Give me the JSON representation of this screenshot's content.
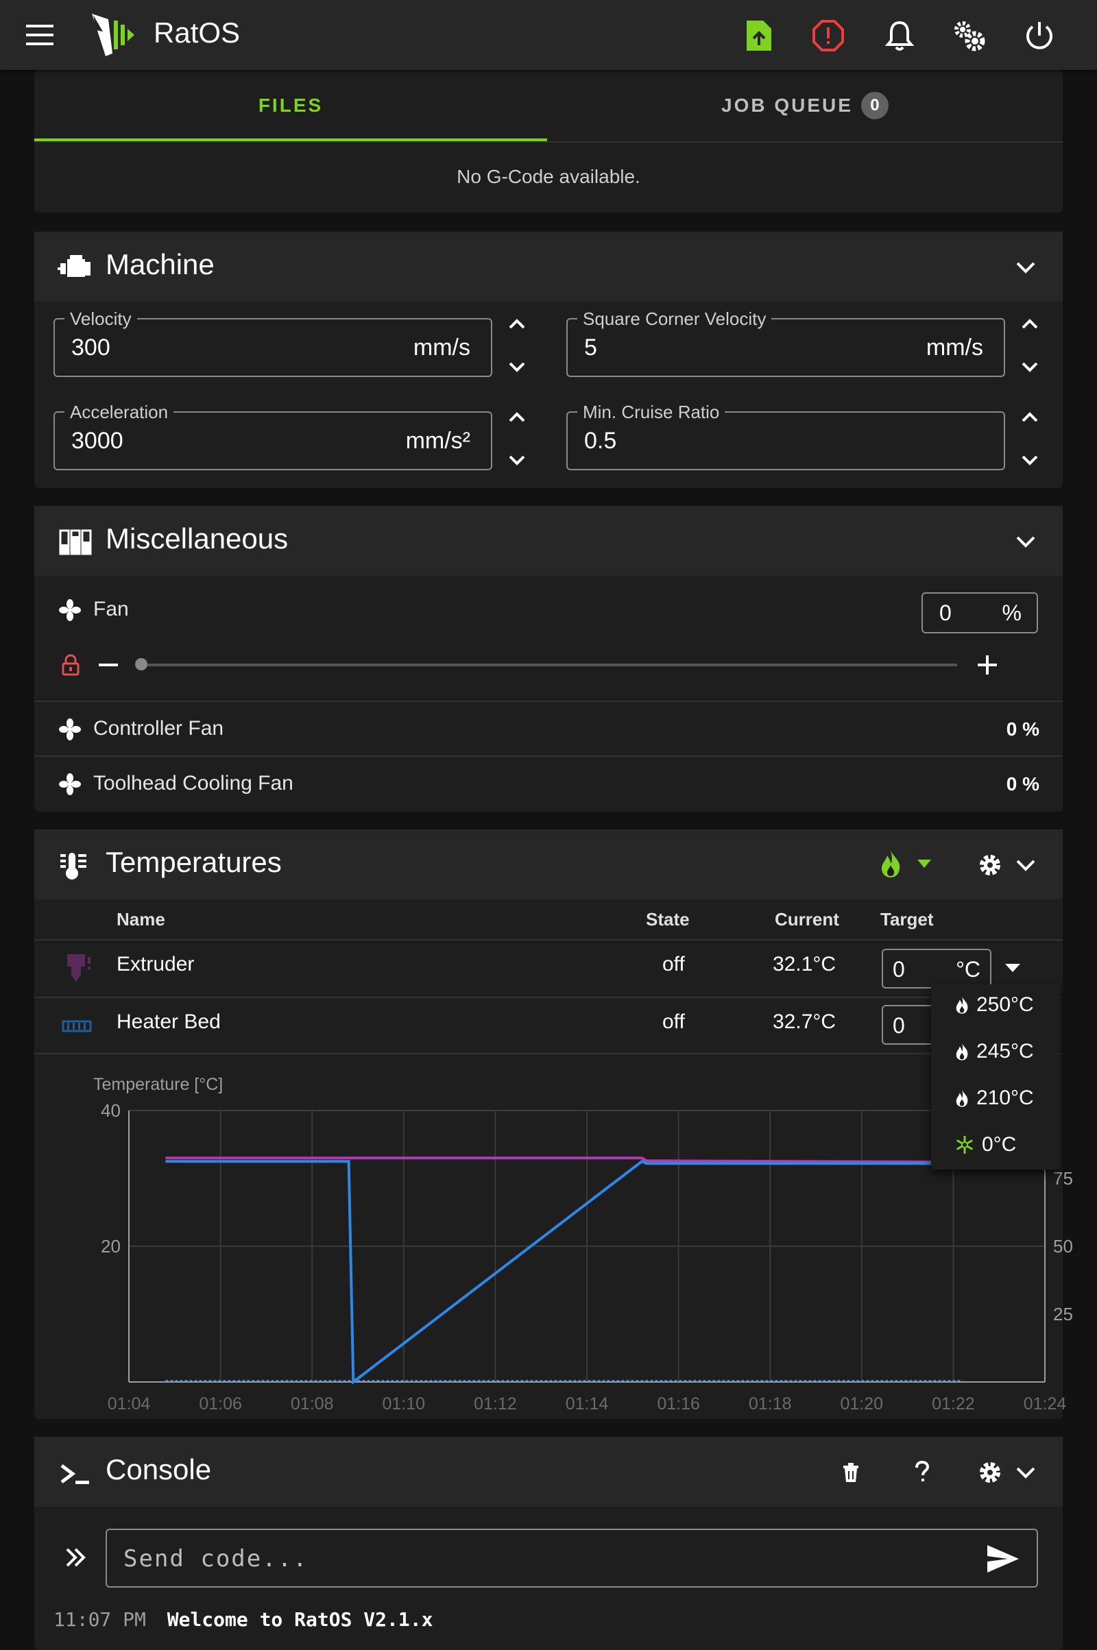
{
  "app": {
    "title": "RatOS"
  },
  "topbar": {
    "icons": [
      "menu-icon",
      "ratos-logo",
      "upload-file-icon",
      "emergency-stop-icon",
      "bell-icon",
      "cogs-icon",
      "power-icon"
    ]
  },
  "files": {
    "tabs": [
      {
        "label": "FILES",
        "active": true
      },
      {
        "label": "JOB QUEUE",
        "badge": "0",
        "active": false
      }
    ],
    "empty_text": "No G-Code available."
  },
  "machine": {
    "title": "Machine",
    "fields": [
      {
        "label": "Velocity",
        "value": "300",
        "unit": "mm/s"
      },
      {
        "label": "Square Corner Velocity",
        "value": "5",
        "unit": "mm/s"
      },
      {
        "label": "Acceleration",
        "value": "3000",
        "unit": "mm/s²"
      },
      {
        "label": "Min. Cruise Ratio",
        "value": "0.5",
        "unit": ""
      }
    ]
  },
  "misc": {
    "title": "Miscellaneous",
    "fan": {
      "label": "Fan",
      "value": "0",
      "unit": "%",
      "level_percent": 0
    },
    "controller_fan": {
      "label": "Controller Fan",
      "value": "0 %"
    },
    "toolhead_fan": {
      "label": "Toolhead Cooling Fan",
      "value": "0 %"
    }
  },
  "temps": {
    "title": "Temperatures",
    "columns": {
      "name": "Name",
      "state": "State",
      "current": "Current",
      "target": "Target"
    },
    "rows": [
      {
        "name": "Extruder",
        "state": "off",
        "current": "32.1°C",
        "target": "0",
        "unit": "°C"
      },
      {
        "name": "Heater Bed",
        "state": "off",
        "current": "32.7°C",
        "target": "0"
      }
    ],
    "presets": [
      {
        "label": "250°C",
        "icon": "fire-icon"
      },
      {
        "label": "245°C",
        "icon": "fire-icon"
      },
      {
        "label": "210°C",
        "icon": "fire-icon"
      },
      {
        "label": "0°C",
        "icon": "snowflake-icon"
      }
    ],
    "accent": "#7ed321"
  },
  "chart_data": {
    "type": "line",
    "ylabel": "Temperature [°C]",
    "x_ticks": [
      "01:04",
      "01:06",
      "01:08",
      "01:10",
      "01:12",
      "01:14",
      "01:16",
      "01:18",
      "01:20",
      "01:22",
      "01:24"
    ],
    "y_ticks": [
      "40",
      "20"
    ],
    "y2_ticks": [
      "75",
      "50",
      "25"
    ],
    "ylim": [
      0,
      40
    ],
    "series": [
      {
        "color": "#b03bb0",
        "x": [
          "01:04.8",
          "01:15.2",
          "01:15.3",
          "01:22.2"
        ],
        "values": [
          33.0,
          33.0,
          32.6,
          32.4
        ]
      },
      {
        "color": "#2e88e8",
        "x": [
          "01:04.8",
          "01:08.8",
          "01:08.9",
          "01:15.2",
          "01:15.3",
          "01:22.2"
        ],
        "values": [
          32.5,
          32.5,
          0,
          32.5,
          32.2,
          32.2
        ]
      }
    ]
  },
  "console": {
    "title": "Console",
    "placeholder": "Send code...",
    "log": [
      {
        "time": "11:07 PM",
        "message": "Welcome to RatOS V2.1.x"
      }
    ]
  }
}
